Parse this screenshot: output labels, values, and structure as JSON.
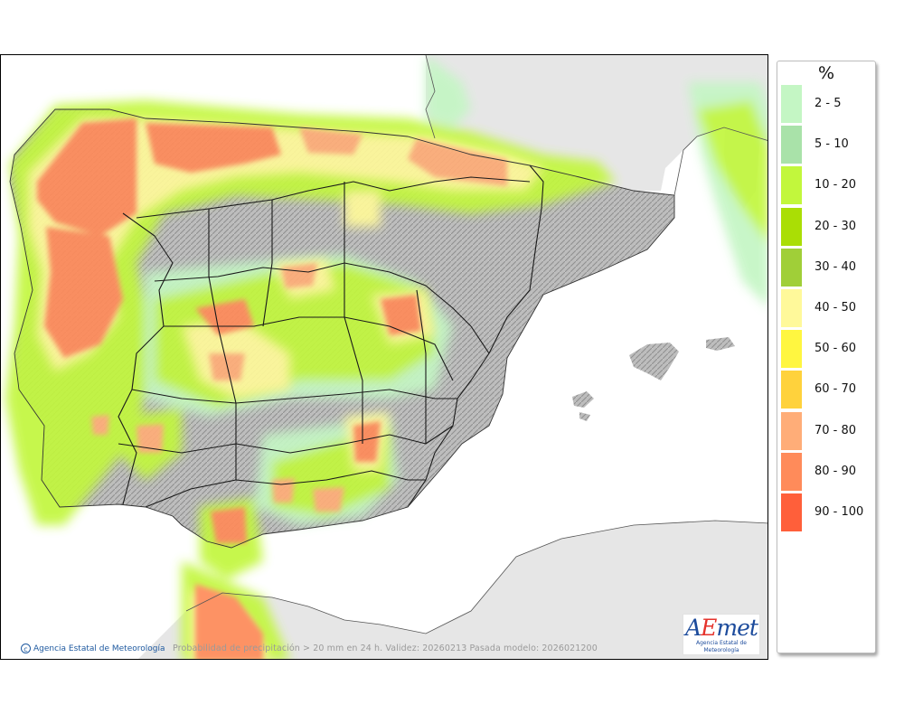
{
  "map": {
    "caption": "Probabilidad de precipitación > 20 mm en 24 h. Validez: 20260213 Pasada modelo: 2026021200",
    "credit": "Agencia Estatal de Meteorología",
    "logo_text": "AEmet",
    "logo_subtitle": "Agencia Estatal de Meteorología",
    "colors": {
      "sea": "#ffffff",
      "land_foreign": "#e6e6e6",
      "land_relief": "#b9b9b9",
      "borders": "#1a1a1a"
    }
  },
  "legend": {
    "unit": "%",
    "items": [
      {
        "label": "2 - 5",
        "color": "#c4f6c4"
      },
      {
        "label": "5 - 10",
        "color": "#a9e2a9"
      },
      {
        "label": "10 - 20",
        "color": "#c2f73c"
      },
      {
        "label": "20 - 30",
        "color": "#aade05"
      },
      {
        "label": "30 - 40",
        "color": "#a0cf38"
      },
      {
        "label": "40 - 50",
        "color": "#fff99a"
      },
      {
        "label": "50 - 60",
        "color": "#fff640"
      },
      {
        "label": "60 - 70",
        "color": "#ffd23c"
      },
      {
        "label": "70 - 80",
        "color": "#ffad78"
      },
      {
        "label": "80 - 90",
        "color": "#ff8b5a"
      },
      {
        "label": "90 - 100",
        "color": "#ff5f3a"
      }
    ]
  }
}
